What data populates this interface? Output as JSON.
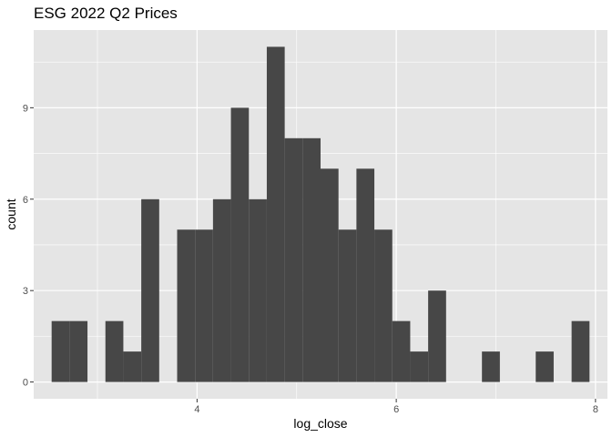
{
  "chart_data": {
    "type": "bar",
    "title": "ESG 2022 Q2 Prices",
    "xlabel": "log_close",
    "ylabel": "count",
    "bin_width": 0.18,
    "bins": [
      {
        "x0": 2.54,
        "x1": 2.72,
        "count": 2
      },
      {
        "x0": 2.72,
        "x1": 2.9,
        "count": 2
      },
      {
        "x0": 2.9,
        "x1": 3.08,
        "count": 0
      },
      {
        "x0": 3.08,
        "x1": 3.26,
        "count": 2
      },
      {
        "x0": 3.26,
        "x1": 3.44,
        "count": 1
      },
      {
        "x0": 3.44,
        "x1": 3.62,
        "count": 6
      },
      {
        "x0": 3.62,
        "x1": 3.8,
        "count": 0
      },
      {
        "x0": 3.8,
        "x1": 3.98,
        "count": 5
      },
      {
        "x0": 3.98,
        "x1": 4.16,
        "count": 5
      },
      {
        "x0": 4.16,
        "x1": 4.34,
        "count": 6
      },
      {
        "x0": 4.34,
        "x1": 4.52,
        "count": 9
      },
      {
        "x0": 4.52,
        "x1": 4.7,
        "count": 6
      },
      {
        "x0": 4.7,
        "x1": 4.88,
        "count": 11
      },
      {
        "x0": 4.88,
        "x1": 5.06,
        "count": 8
      },
      {
        "x0": 5.06,
        "x1": 5.24,
        "count": 8
      },
      {
        "x0": 5.24,
        "x1": 5.42,
        "count": 7
      },
      {
        "x0": 5.42,
        "x1": 5.6,
        "count": 5
      },
      {
        "x0": 5.6,
        "x1": 5.78,
        "count": 7
      },
      {
        "x0": 5.78,
        "x1": 5.96,
        "count": 5
      },
      {
        "x0": 5.96,
        "x1": 6.14,
        "count": 2
      },
      {
        "x0": 6.14,
        "x1": 6.32,
        "count": 1
      },
      {
        "x0": 6.32,
        "x1": 6.5,
        "count": 3
      },
      {
        "x0": 6.5,
        "x1": 6.68,
        "count": 0
      },
      {
        "x0": 6.68,
        "x1": 6.86,
        "count": 0
      },
      {
        "x0": 6.86,
        "x1": 7.04,
        "count": 1
      },
      {
        "x0": 7.04,
        "x1": 7.22,
        "count": 0
      },
      {
        "x0": 7.22,
        "x1": 7.4,
        "count": 0
      },
      {
        "x0": 7.4,
        "x1": 7.58,
        "count": 1
      },
      {
        "x0": 7.58,
        "x1": 7.76,
        "count": 0
      },
      {
        "x0": 7.76,
        "x1": 7.94,
        "count": 2
      }
    ],
    "xlim": [
      2.36,
      8.12
    ],
    "ylim": [
      -0.55,
      11.55
    ],
    "x_ticks": [
      4,
      6,
      8
    ],
    "x_minor_ticks": [
      3,
      5,
      7
    ],
    "y_ticks": [
      0,
      3,
      6,
      9
    ],
    "y_minor_ticks": [
      1.5,
      4.5,
      7.5,
      10.5
    ],
    "grid": true,
    "legend": "none",
    "colors": {
      "bar_fill": "#474747",
      "panel_background": "#e5e5e5",
      "grid_line": "#ffffff",
      "tick_label": "#4d4d4d",
      "tick_mark": "#333333"
    }
  }
}
